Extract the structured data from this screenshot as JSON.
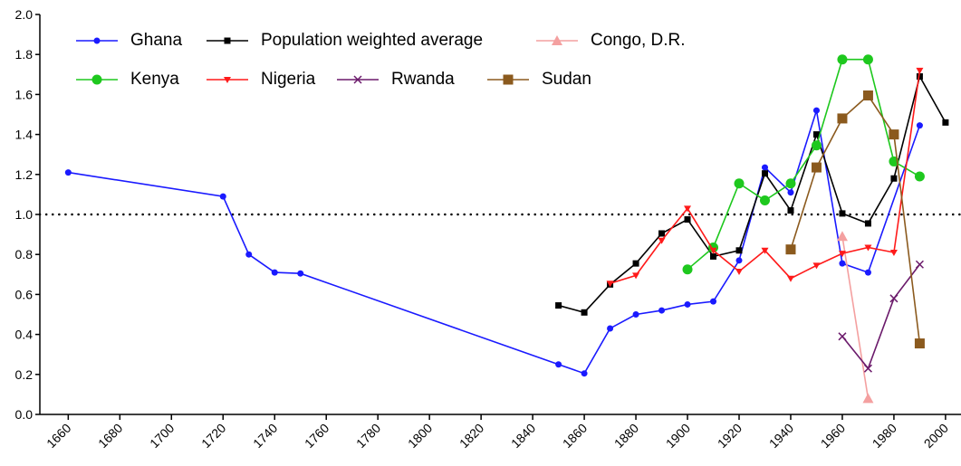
{
  "chart_data": {
    "type": "line",
    "xlim": [
      1649,
      2006
    ],
    "xticks": [
      1660,
      1680,
      1700,
      1720,
      1740,
      1760,
      1780,
      1800,
      1820,
      1840,
      1860,
      1880,
      1900,
      1920,
      1940,
      1960,
      1980,
      2000
    ],
    "ylim": [
      0,
      2
    ],
    "yticks": [
      {
        "value": 0,
        "label": "0.0"
      },
      0.2,
      0.4,
      0.6,
      0.8,
      {
        "value": 1,
        "label": "1.0"
      },
      1.2,
      1.4,
      1.6,
      1.8,
      {
        "value": 2,
        "label": "2.0"
      }
    ],
    "reference_line": 1,
    "series": [
      {
        "name": "Ghana",
        "color": "#1a1aff",
        "marker": "circle",
        "x": [
          1660,
          1720,
          1730,
          1740,
          1750,
          1850,
          1860,
          1870,
          1880,
          1890,
          1900,
          1910,
          1920,
          1930,
          1940,
          1950,
          1960,
          1970,
          1990
        ],
        "values": [
          1.21,
          1.09,
          0.8,
          0.71,
          0.705,
          0.25,
          0.205,
          0.43,
          0.5,
          0.52,
          0.55,
          0.565,
          0.77,
          1.235,
          1.11,
          1.52,
          0.755,
          0.71,
          1.445
        ]
      },
      {
        "name": "Population weighted average",
        "color": "#000000",
        "marker": "square",
        "x": [
          1850,
          1860,
          1870,
          1880,
          1890,
          1900,
          1910,
          1920,
          1930,
          1940,
          1950,
          1960,
          1970,
          1980,
          1990,
          2000
        ],
        "values": [
          0.545,
          0.51,
          0.65,
          0.755,
          0.905,
          0.975,
          0.79,
          0.82,
          1.205,
          1.02,
          1.4,
          1.005,
          0.955,
          1.18,
          1.69,
          1.46
        ]
      },
      {
        "name": "Congo, D.R.",
        "color": "#f4a0a0",
        "marker": "triangle-up",
        "x": [
          1960,
          1970
        ],
        "values": [
          0.89,
          0.08
        ]
      },
      {
        "name": "Kenya",
        "color": "#1ec81e",
        "marker": "big-circle",
        "x": [
          1900,
          1910,
          1920,
          1930,
          1940,
          1950,
          1960,
          1970,
          1980,
          1990
        ],
        "values": [
          0.725,
          0.835,
          1.155,
          1.07,
          1.155,
          1.345,
          1.775,
          1.775,
          1.265,
          1.19
        ]
      },
      {
        "name": "Nigeria",
        "color": "#ff1a1a",
        "marker": "triangle-down",
        "x": [
          1870,
          1880,
          1890,
          1900,
          1910,
          1920,
          1930,
          1940,
          1950,
          1960,
          1970,
          1980,
          1990
        ],
        "values": [
          0.655,
          0.695,
          0.87,
          1.03,
          0.82,
          0.715,
          0.82,
          0.68,
          0.745,
          0.805,
          0.835,
          0.81,
          1.72
        ]
      },
      {
        "name": "Rwanda",
        "color": "#6b1a6b",
        "marker": "x",
        "x": [
          1960,
          1970,
          1980,
          1990
        ],
        "values": [
          0.39,
          0.23,
          0.58,
          0.75
        ]
      },
      {
        "name": "Sudan",
        "color": "#8b5a1e",
        "marker": "big-square",
        "x": [
          1940,
          1950,
          1960,
          1970,
          1980,
          1990
        ],
        "values": [
          0.825,
          1.235,
          1.48,
          1.595,
          1.4,
          0.355
        ]
      }
    ]
  }
}
